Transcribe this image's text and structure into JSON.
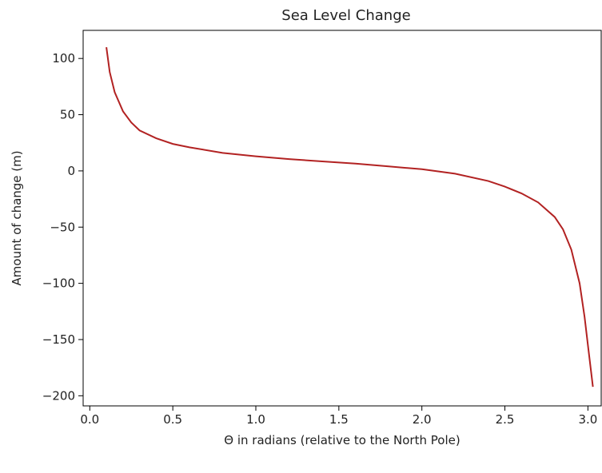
{
  "chart_data": {
    "type": "line",
    "title": "Sea Level Change",
    "xlabel": "Θ in radians (relative to the North Pole)",
    "ylabel": "Amount of change (m)",
    "xlim": [
      -0.04,
      3.08
    ],
    "ylim": [
      -209,
      125
    ],
    "xticks": [
      0.0,
      0.5,
      1.0,
      1.5,
      2.0,
      2.5,
      3.0
    ],
    "xtick_labels": [
      "0.0",
      "0.5",
      "1.0",
      "1.5",
      "2.0",
      "2.5",
      "3.0"
    ],
    "yticks": [
      100,
      50,
      0,
      -50,
      -100,
      -150,
      -200
    ],
    "ytick_labels": [
      "100",
      "50",
      "0",
      "−50",
      "−100",
      "−150",
      "−200"
    ],
    "grid": false,
    "line_color": "#b22222",
    "series": [
      {
        "x": [
          0.1,
          0.12,
          0.15,
          0.2,
          0.25,
          0.3,
          0.4,
          0.5,
          0.6,
          0.8,
          1.0,
          1.2,
          1.4,
          1.6,
          1.8,
          2.0,
          2.2,
          2.4,
          2.5,
          2.6,
          2.7,
          2.8,
          2.85,
          2.9,
          2.95,
          2.98,
          3.0,
          3.03
        ],
        "y": [
          110,
          88,
          70,
          53,
          43,
          36,
          29,
          24,
          21,
          16,
          13,
          10.5,
          8.5,
          6.5,
          4,
          1.5,
          -2.5,
          -9,
          -14,
          -20,
          -28,
          -41,
          -52,
          -70,
          -100,
          -130,
          -155,
          -192
        ]
      }
    ]
  }
}
